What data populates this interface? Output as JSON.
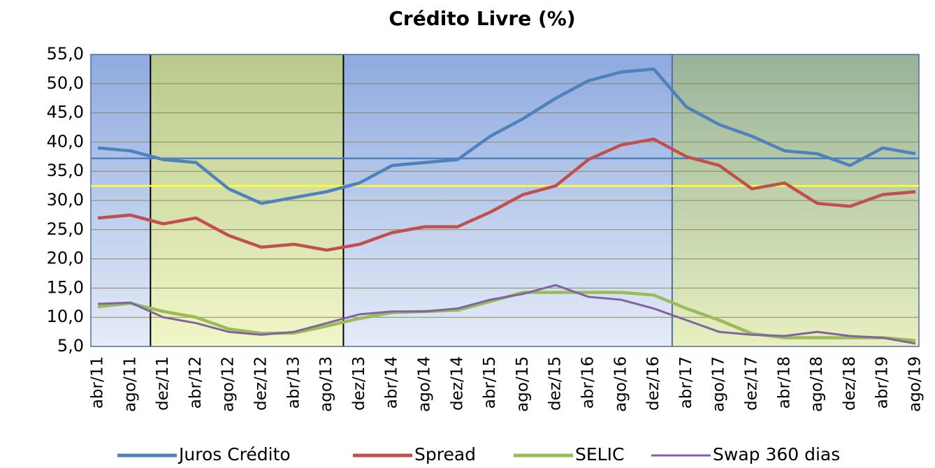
{
  "chart_data": {
    "type": "line",
    "title": "Crédito Livre (%)",
    "categories": [
      "abr/11",
      "ago/11",
      "dez/11",
      "abr/12",
      "ago/12",
      "dez/12",
      "abr/13",
      "ago/13",
      "dez/13",
      "abr/14",
      "ago/14",
      "dez/14",
      "abr/15",
      "ago/15",
      "dez/15",
      "abr/16",
      "ago/16",
      "dez/16",
      "abr/17",
      "ago/17",
      "dez/17",
      "abr/18",
      "ago/18",
      "dez/18",
      "abr/19",
      "ago/19"
    ],
    "series": [
      {
        "name": "Juros Crédito",
        "color": "#4f81bd",
        "values": [
          39,
          38.5,
          37,
          36.5,
          32,
          29.5,
          30.5,
          31.5,
          33,
          36,
          36.5,
          37,
          41,
          44,
          47.5,
          50.5,
          52,
          52.5,
          46,
          43,
          41,
          38.5,
          38,
          36,
          39,
          38
        ]
      },
      {
        "name": "Spread",
        "color": "#c0504d",
        "values": [
          27,
          27.5,
          26,
          27,
          24,
          22,
          22.5,
          21.5,
          22.5,
          24.5,
          25.5,
          25.5,
          28,
          31,
          32.5,
          37,
          39.5,
          40.5,
          37.5,
          36,
          32,
          33,
          29.5,
          29,
          31,
          31.5
        ]
      },
      {
        "name": "SELIC",
        "color": "#9bbb59",
        "values": [
          11.8,
          12.4,
          11,
          10,
          8,
          7.25,
          7.3,
          8.5,
          9.8,
          10.8,
          11,
          11.2,
          12.7,
          14.25,
          14.25,
          14.25,
          14.25,
          13.8,
          11.5,
          9.5,
          7.2,
          6.5,
          6.5,
          6.5,
          6.5,
          6
        ]
      },
      {
        "name": "Swap 360 dias",
        "color": "#8064a2",
        "values": [
          12.3,
          12.5,
          10,
          9,
          7.5,
          7,
          7.5,
          9,
          10.5,
          11,
          11,
          11.5,
          13,
          14,
          15.5,
          13.5,
          13,
          11.5,
          9.5,
          7.5,
          7,
          6.8,
          7.5,
          6.8,
          6.5,
          5.5
        ]
      }
    ],
    "reference_lines": [
      {
        "value": 37.2,
        "color": "#4f81bd"
      },
      {
        "value": 32.5,
        "color": "#ffff33"
      }
    ],
    "ylim": [
      5,
      55
    ],
    "yticks": [
      {
        "value": 5,
        "label": "5,0"
      },
      {
        "value": 10,
        "label": "10,0"
      },
      {
        "value": 15,
        "label": "15,0"
      },
      {
        "value": 20,
        "label": "20,0"
      },
      {
        "value": 25,
        "label": "25,0"
      },
      {
        "value": 30,
        "label": "30,0"
      },
      {
        "value": 35,
        "label": "35,0"
      },
      {
        "value": 40,
        "label": "40,0"
      },
      {
        "value": 45,
        "label": "45,0"
      },
      {
        "value": 50,
        "label": "50,0"
      },
      {
        "value": 55,
        "label": "55,0"
      }
    ],
    "grid": true,
    "legend": "bottom"
  }
}
